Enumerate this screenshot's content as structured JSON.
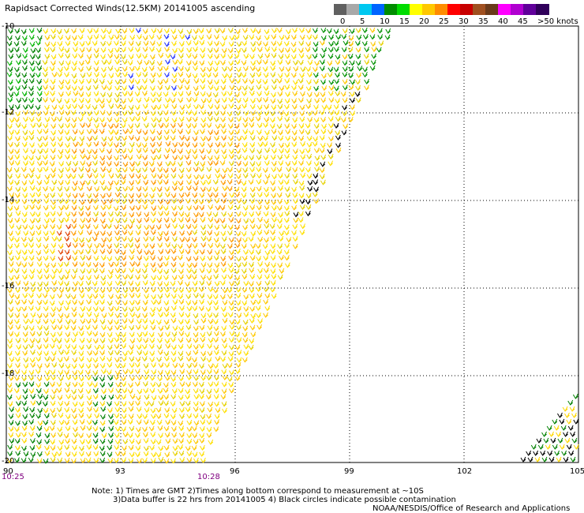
{
  "header": {
    "title": "Rapidsact Corrected Winds(12.5KM) 20141005 ascending"
  },
  "legend": {
    "labels": [
      "0",
      "5",
      "10",
      "15",
      "20",
      "25",
      "30",
      "35",
      "40",
      "45",
      ">50 knots"
    ],
    "colors": [
      "#606060",
      "#a8a8a8",
      "#00c8f0",
      "#0064ff",
      "#008c00",
      "#00dc00",
      "#ffff00",
      "#ffc800",
      "#ff8c00",
      "#ff0000",
      "#c80000",
      "#a05020",
      "#6a3a1a",
      "#ff00ff",
      "#b000d0",
      "#60009a",
      "#30005a"
    ]
  },
  "axes": {
    "lat_labels": [
      "-10",
      "-12",
      "-14",
      "-16",
      "-18",
      "-20"
    ],
    "lon_labels": [
      "90",
      "93",
      "96",
      "99",
      "102",
      "105"
    ]
  },
  "times": [
    "10:25",
    "10:28"
  ],
  "notes": {
    "line1": "Note: 1) Times are GMT 2)Times along bottom correspond to measurement at ~10S",
    "line2": "3)Data buffer is 22 hrs from 20141005 4) Black circles indicate possible contamination",
    "credit": "NOAA/NESDIS/Office of Research and Applications"
  }
}
